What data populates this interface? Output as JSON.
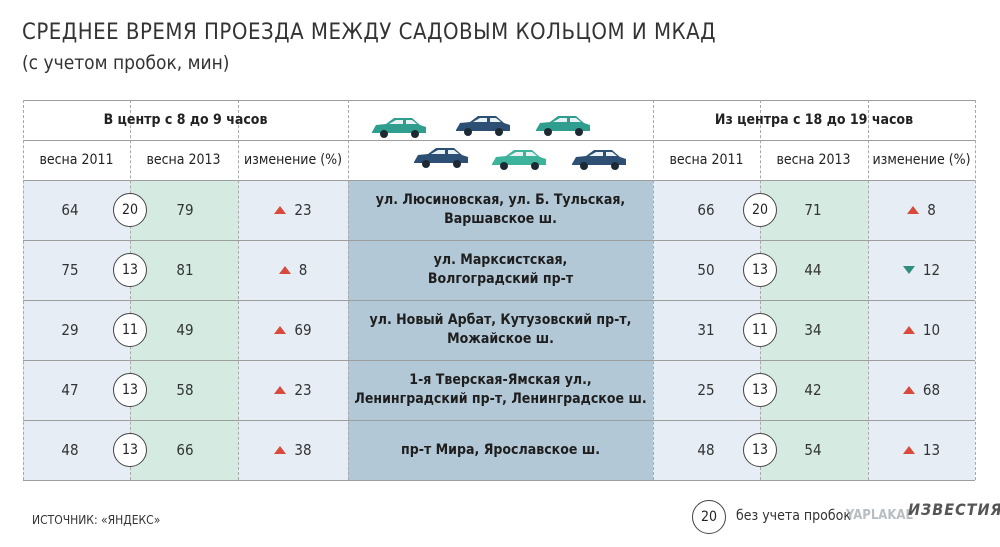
{
  "title": "СРЕДНЕЕ ВРЕМЯ ПРОЕЗДА МЕЖДУ САДОВЫМ КОЛЬЦОМ И МКАД",
  "subtitle": "(с учетом пробок, мин)",
  "left_header": "В центр с 8 до 9 часов",
  "right_header": "Из центра с 18 до 19 часов",
  "col_2011": "весна 2011",
  "col_2013": "весна 2013",
  "col_change": "изменение (%)",
  "source": "ИСТОЧНИК: «ЯНДЕКС»",
  "legend": {
    "value": "20",
    "label": "без учета пробок"
  },
  "brand": "ИЗВЕСТИЯ",
  "watermark": "YAPLAKAL",
  "colors": {
    "in_bg": "#e6edf4",
    "highlight": "#d5ebe2",
    "route_bg": "#b3c8d6",
    "up": "#d84a3c",
    "down": "#2f8f7c"
  },
  "chart_data": {
    "type": "table",
    "title": "СРЕДНЕЕ ВРЕМЯ ПРОЕЗДА МЕЖДУ САДОВЫМ КОЛЬЦОМ И МКАД",
    "subtitle": "(с учетом пробок, мин)",
    "rows": [
      {
        "route": [
          "ул. Люсиновская, ул. Б. Тульская,",
          "Варшавское ш."
        ],
        "in_2011": "64",
        "in_free": "20",
        "in_2013": "79",
        "in_change": "23",
        "in_dir": "up",
        "out_2011": "66",
        "out_free": "20",
        "out_2013": "71",
        "out_change": "8",
        "out_dir": "up"
      },
      {
        "route": [
          "ул. Марксистская,",
          "Волгоградский пр-т"
        ],
        "in_2011": "75",
        "in_free": "13",
        "in_2013": "81",
        "in_change": "8",
        "in_dir": "up",
        "out_2011": "50",
        "out_free": "13",
        "out_2013": "44",
        "out_change": "12",
        "out_dir": "down"
      },
      {
        "route": [
          "ул. Новый Арбат, Кутузовский пр-т,",
          "Можайское ш."
        ],
        "in_2011": "29",
        "in_free": "11",
        "in_2013": "49",
        "in_change": "69",
        "in_dir": "up",
        "out_2011": "31",
        "out_free": "11",
        "out_2013": "34",
        "out_change": "10",
        "out_dir": "up"
      },
      {
        "route": [
          "1-я Тверская-Ямская ул.,",
          "Ленинградский пр-т, Ленинградское ш."
        ],
        "in_2011": "47",
        "in_free": "13",
        "in_2013": "58",
        "in_change": "23",
        "in_dir": "up",
        "out_2011": "25",
        "out_free": "13",
        "out_2013": "42",
        "out_change": "68",
        "out_dir": "up"
      },
      {
        "route": [
          "пр-т Мира, Ярославское ш."
        ],
        "in_2011": "48",
        "in_free": "13",
        "in_2013": "66",
        "in_change": "38",
        "in_dir": "up",
        "out_2011": "48",
        "out_free": "13",
        "out_2013": "54",
        "out_change": "13",
        "out_dir": "up"
      }
    ]
  }
}
